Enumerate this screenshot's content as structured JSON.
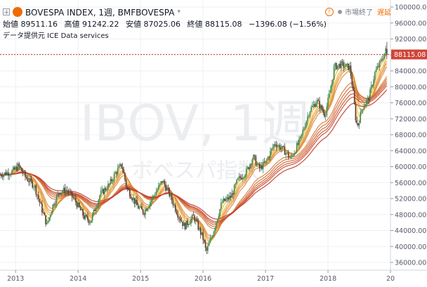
{
  "header": {
    "title": "BOVESPA INDEX, 1週, BMFBOVESPA",
    "open_label": "始値",
    "open": "89511.16",
    "high_label": "高値",
    "high": "91242.22",
    "low_label": "安値",
    "low": "87025.06",
    "close_label": "終値",
    "close": "88115.08",
    "change": "−1396.08 (−1.56%)",
    "provider": "データ提供元 ICE Data services",
    "market_status": "市場終了",
    "delay": "遅延",
    "info_glyph": "!"
  },
  "watermark": {
    "line1": "IBOV, 1週",
    "line2": "ボベスパ指数"
  },
  "colors": {
    "up": "#26a69a",
    "down": "#ef5350",
    "candle": "#4a3a3a",
    "price_line": "#c0392b",
    "price_tag": "#d0453a",
    "ribbon_start": "#f5c542",
    "ribbon_end": "#c0392b"
  },
  "chart_data": {
    "type": "candlestick",
    "x_ticks": [
      "2013",
      "2014",
      "2015",
      "2016",
      "2017",
      "2018",
      "20"
    ],
    "y_ticks": [
      "100000.00",
      "96000.00",
      "92000.00",
      "88000.00",
      "84000.00",
      "80000.00",
      "76000.00",
      "72000.00",
      "68000.00",
      "64000.00",
      "60000.00",
      "56000.00",
      "52000.00",
      "48000.00",
      "44000.00",
      "40000.00",
      "36000.00"
    ],
    "ylim": [
      34000,
      101000
    ],
    "last_price": "88115.08",
    "price_keypoints": [
      [
        2012.75,
        58000
      ],
      [
        2012.95,
        58800
      ],
      [
        2013.05,
        60200
      ],
      [
        2013.15,
        57500
      ],
      [
        2013.3,
        55200
      ],
      [
        2013.45,
        47800
      ],
      [
        2013.5,
        45400
      ],
      [
        2013.6,
        50500
      ],
      [
        2013.7,
        53800
      ],
      [
        2013.82,
        54100
      ],
      [
        2013.95,
        51500
      ],
      [
        2014.1,
        47300
      ],
      [
        2014.2,
        46300
      ],
      [
        2014.35,
        53000
      ],
      [
        2014.5,
        55500
      ],
      [
        2014.6,
        58500
      ],
      [
        2014.7,
        60500
      ],
      [
        2014.78,
        54500
      ],
      [
        2014.85,
        52800
      ],
      [
        2014.95,
        50000
      ],
      [
        2015.05,
        48500
      ],
      [
        2015.2,
        52500
      ],
      [
        2015.35,
        56500
      ],
      [
        2015.45,
        53500
      ],
      [
        2015.6,
        48000
      ],
      [
        2015.7,
        45000
      ],
      [
        2015.85,
        47500
      ],
      [
        2016.0,
        42000
      ],
      [
        2016.05,
        38500
      ],
      [
        2016.15,
        43000
      ],
      [
        2016.3,
        51000
      ],
      [
        2016.45,
        52500
      ],
      [
        2016.55,
        56500
      ],
      [
        2016.7,
        59000
      ],
      [
        2016.8,
        62500
      ],
      [
        2016.9,
        59500
      ],
      [
        2017.0,
        61000
      ],
      [
        2017.15,
        66000
      ],
      [
        2017.3,
        64000
      ],
      [
        2017.4,
        62000
      ],
      [
        2017.55,
        66500
      ],
      [
        2017.7,
        74000
      ],
      [
        2017.82,
        76500
      ],
      [
        2017.95,
        73000
      ],
      [
        2018.05,
        80000
      ],
      [
        2018.1,
        85000
      ],
      [
        2018.2,
        85600
      ],
      [
        2018.35,
        84800
      ],
      [
        2018.4,
        79000
      ],
      [
        2018.45,
        71000
      ],
      [
        2018.48,
        70500
      ],
      [
        2018.55,
        75000
      ],
      [
        2018.65,
        77000
      ],
      [
        2018.75,
        83500
      ],
      [
        2018.85,
        86500
      ],
      [
        2018.92,
        89000
      ],
      [
        2018.95,
        89500
      ]
    ],
    "ema_ribbon_lengths": [
      3,
      5,
      8,
      10,
      12,
      15,
      30,
      35,
      40,
      45,
      50,
      60
    ],
    "grid": true,
    "legend": "none"
  }
}
